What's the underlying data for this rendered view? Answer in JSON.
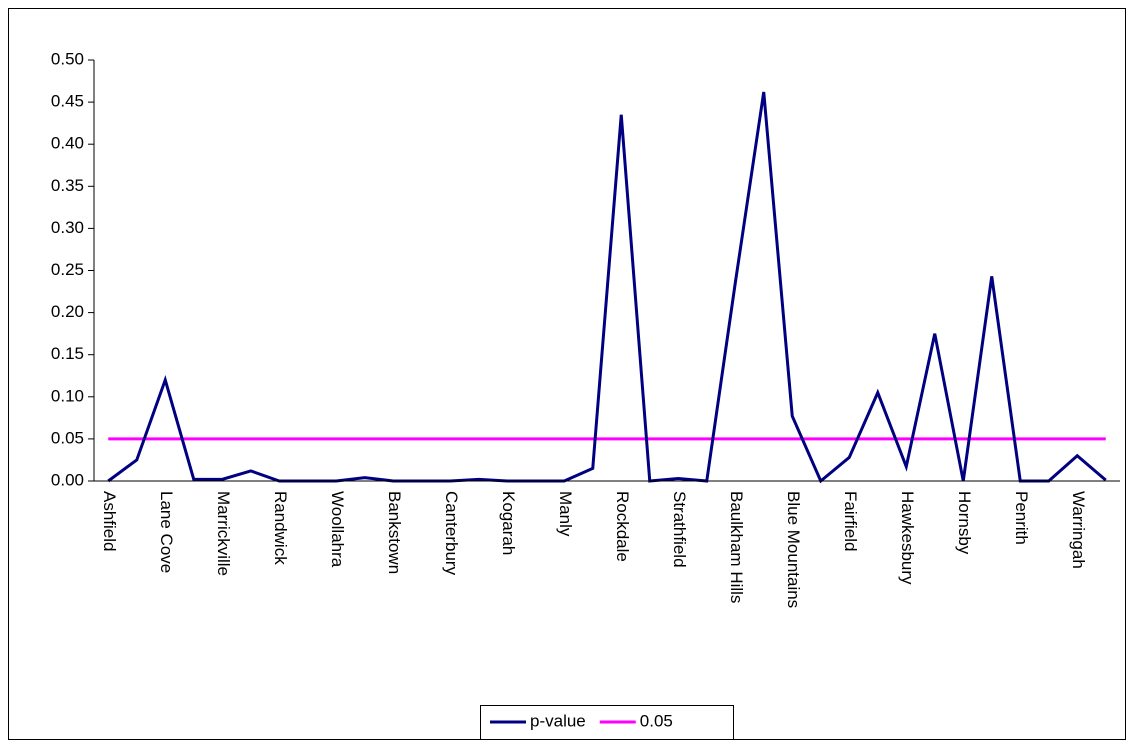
{
  "chart_data": {
    "type": "line",
    "categories": [
      "Ashfield",
      null,
      "Lane Cove",
      null,
      "Marrickville",
      null,
      "Randwick",
      null,
      "Woollahra",
      null,
      "Bankstown",
      null,
      "Canterbury",
      null,
      "Kogarah",
      null,
      "Manly",
      null,
      "Rockdale",
      null,
      "Strathfield",
      null,
      "Baulkham Hills",
      null,
      "Blue Mountains",
      null,
      "Fairfield",
      null,
      "Hawkesbury",
      null,
      "Hornsby",
      null,
      "Penrith",
      null,
      "Warringah",
      null
    ],
    "series": [
      {
        "name": "p-value",
        "color": "#000080",
        "values": [
          0,
          0.025,
          0.12,
          0.002,
          0.002,
          0.012,
          0,
          0,
          0,
          0.004,
          0,
          0,
          0,
          0.002,
          0,
          0,
          0,
          0.015,
          0.435,
          0,
          0.003,
          0,
          0.235,
          0.462,
          0.077,
          0,
          0.028,
          0.105,
          0.017,
          0.175,
          0,
          0.243,
          0,
          0,
          0.03,
          0.001
        ]
      },
      {
        "name": "0.05",
        "color": "#ff00ff",
        "values": [
          0.05,
          0.05,
          0.05,
          0.05,
          0.05,
          0.05,
          0.05,
          0.05,
          0.05,
          0.05,
          0.05,
          0.05,
          0.05,
          0.05,
          0.05,
          0.05,
          0.05,
          0.05,
          0.05,
          0.05,
          0.05,
          0.05,
          0.05,
          0.05,
          0.05,
          0.05,
          0.05,
          0.05,
          0.05,
          0.05,
          0.05,
          0.05,
          0.05,
          0.05,
          0.05,
          0.05
        ]
      }
    ],
    "ylim": [
      0,
      0.5
    ],
    "yticks": [
      {
        "value": 0,
        "label": "0.00"
      },
      {
        "value": 0.05,
        "label": "0.05"
      },
      {
        "value": 0.1,
        "label": "0.10"
      },
      {
        "value": 0.15,
        "label": "0.15"
      },
      {
        "value": 0.2,
        "label": "0.20"
      },
      {
        "value": 0.25,
        "label": "0.25"
      },
      {
        "value": 0.3,
        "label": "0.30"
      },
      {
        "value": 0.35,
        "label": "0.35"
      },
      {
        "value": 0.4,
        "label": "0.40"
      },
      {
        "value": 0.45,
        "label": "0.45"
      },
      {
        "value": 0.5,
        "label": "0.50"
      }
    ],
    "legend": "bottom"
  }
}
